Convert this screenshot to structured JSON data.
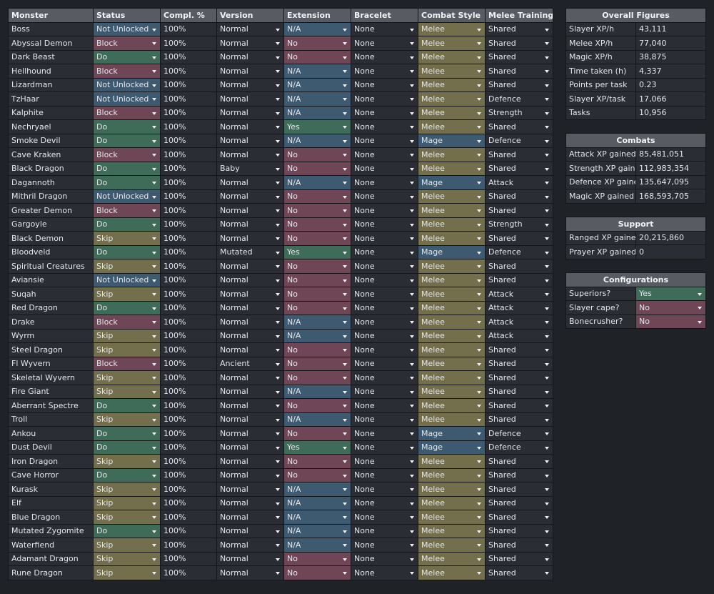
{
  "main_table": {
    "headers": [
      "Monster",
      "Status",
      "Compl. %",
      "Version",
      "Extension",
      "Bracelet",
      "Combat Style",
      "Melee Training"
    ],
    "rows": [
      [
        "Boss",
        "Not Unlocked",
        "100%",
        "Normal",
        "N/A",
        "None",
        "Melee",
        "Shared"
      ],
      [
        "Abyssal Demon",
        "Block",
        "100%",
        "Normal",
        "No",
        "None",
        "Melee",
        "Shared"
      ],
      [
        "Dark Beast",
        "Do",
        "100%",
        "Normal",
        "No",
        "None",
        "Melee",
        "Shared"
      ],
      [
        "Hellhound",
        "Block",
        "100%",
        "Normal",
        "N/A",
        "None",
        "Melee",
        "Shared"
      ],
      [
        "Lizardman",
        "Not Unlocked",
        "100%",
        "Normal",
        "N/A",
        "None",
        "Melee",
        "Shared"
      ],
      [
        "TzHaar",
        "Not Unlocked",
        "100%",
        "Normal",
        "N/A",
        "None",
        "Melee",
        "Defence"
      ],
      [
        "Kalphite",
        "Block",
        "100%",
        "Normal",
        "N/A",
        "None",
        "Melee",
        "Strength"
      ],
      [
        "Nechryael",
        "Do",
        "100%",
        "Normal",
        "Yes",
        "None",
        "Melee",
        "Shared"
      ],
      [
        "Smoke Devil",
        "Do",
        "100%",
        "Normal",
        "N/A",
        "None",
        "Mage",
        "Defence"
      ],
      [
        "Cave Kraken",
        "Block",
        "100%",
        "Normal",
        "No",
        "None",
        "Melee",
        "Shared"
      ],
      [
        "Black Dragon",
        "Do",
        "100%",
        "Baby",
        "No",
        "None",
        "Melee",
        "Shared"
      ],
      [
        "Dagannoth",
        "Do",
        "100%",
        "Normal",
        "N/A",
        "None",
        "Mage",
        "Attack"
      ],
      [
        "Mithril Dragon",
        "Not Unlocked",
        "100%",
        "Normal",
        "No",
        "None",
        "Melee",
        "Shared"
      ],
      [
        "Greater Demon",
        "Block",
        "100%",
        "Normal",
        "No",
        "None",
        "Melee",
        "Shared"
      ],
      [
        "Gargoyle",
        "Do",
        "100%",
        "Normal",
        "No",
        "None",
        "Melee",
        "Strength"
      ],
      [
        "Black Demon",
        "Skip",
        "100%",
        "Normal",
        "No",
        "None",
        "Melee",
        "Shared"
      ],
      [
        "Bloodveld",
        "Do",
        "100%",
        "Mutated",
        "Yes",
        "None",
        "Mage",
        "Defence"
      ],
      [
        "Spiritual Creatures",
        "Skip",
        "100%",
        "Normal",
        "No",
        "None",
        "Melee",
        "Shared"
      ],
      [
        "Aviansie",
        "Not Unlocked",
        "100%",
        "Normal",
        "No",
        "None",
        "Melee",
        "Shared"
      ],
      [
        "Suqah",
        "Skip",
        "100%",
        "Normal",
        "No",
        "None",
        "Melee",
        "Attack"
      ],
      [
        "Red Dragon",
        "Do",
        "100%",
        "Normal",
        "No",
        "None",
        "Melee",
        "Attack"
      ],
      [
        "Drake",
        "Block",
        "100%",
        "Normal",
        "N/A",
        "None",
        "Melee",
        "Attack"
      ],
      [
        "Wyrm",
        "Skip",
        "100%",
        "Normal",
        "N/A",
        "None",
        "Melee",
        "Attack"
      ],
      [
        "Steel Dragon",
        "Skip",
        "100%",
        "Normal",
        "No",
        "None",
        "Melee",
        "Shared"
      ],
      [
        "Fl Wyvern",
        "Block",
        "100%",
        "Ancient",
        "No",
        "None",
        "Melee",
        "Shared"
      ],
      [
        "Skeletal Wyvern",
        "Skip",
        "100%",
        "Normal",
        "No",
        "None",
        "Melee",
        "Shared"
      ],
      [
        "Fire Giant",
        "Skip",
        "100%",
        "Normal",
        "N/A",
        "None",
        "Melee",
        "Shared"
      ],
      [
        "Aberrant Spectre",
        "Do",
        "100%",
        "Normal",
        "No",
        "None",
        "Melee",
        "Shared"
      ],
      [
        "Troll",
        "Skip",
        "100%",
        "Normal",
        "N/A",
        "None",
        "Melee",
        "Shared"
      ],
      [
        "Ankou",
        "Do",
        "100%",
        "Normal",
        "No",
        "None",
        "Mage",
        "Defence"
      ],
      [
        "Dust Devil",
        "Do",
        "100%",
        "Normal",
        "Yes",
        "None",
        "Mage",
        "Defence"
      ],
      [
        "Iron Dragon",
        "Skip",
        "100%",
        "Normal",
        "No",
        "None",
        "Melee",
        "Shared"
      ],
      [
        "Cave Horror",
        "Do",
        "100%",
        "Normal",
        "No",
        "None",
        "Melee",
        "Shared"
      ],
      [
        "Kurask",
        "Skip",
        "100%",
        "Normal",
        "N/A",
        "None",
        "Melee",
        "Shared"
      ],
      [
        "Elf",
        "Skip",
        "100%",
        "Normal",
        "N/A",
        "None",
        "Melee",
        "Shared"
      ],
      [
        "Blue Dragon",
        "Skip",
        "100%",
        "Normal",
        "N/A",
        "None",
        "Melee",
        "Shared"
      ],
      [
        "Mutated Zygomite",
        "Do",
        "100%",
        "Normal",
        "N/A",
        "None",
        "Melee",
        "Shared"
      ],
      [
        "Waterfiend",
        "Skip",
        "100%",
        "Normal",
        "N/A",
        "None",
        "Melee",
        "Shared"
      ],
      [
        "Adamant Dragon",
        "Skip",
        "100%",
        "Normal",
        "No",
        "None",
        "Melee",
        "Shared"
      ],
      [
        "Rune Dragon",
        "Skip",
        "100%",
        "Normal",
        "No",
        "None",
        "Melee",
        "Shared"
      ]
    ]
  },
  "overall": {
    "title": "Overall Figures",
    "rows": [
      [
        "Slayer XP/h",
        "43,111"
      ],
      [
        "Melee XP/h",
        "77,040"
      ],
      [
        "Magic XP/h",
        "38,875"
      ],
      [
        "Time taken (h)",
        "4,337"
      ],
      [
        "Points per task",
        "0.23"
      ],
      [
        "Slayer XP/task",
        "17,066"
      ],
      [
        "Tasks",
        "10,956"
      ]
    ]
  },
  "combats": {
    "title": "Combats",
    "rows": [
      [
        "Attack XP gained",
        "85,481,051"
      ],
      [
        "Strength XP gained",
        "112,983,354"
      ],
      [
        "Defence XP gained",
        "135,647,095"
      ],
      [
        "Magic XP gained",
        "168,593,705"
      ]
    ]
  },
  "support": {
    "title": "Support",
    "rows": [
      [
        "Ranged XP gained",
        "20,215,860"
      ],
      [
        "Prayer XP gained",
        "0"
      ]
    ]
  },
  "configurations": {
    "title": "Configurations",
    "rows": [
      [
        "Superiors?",
        "Yes"
      ],
      [
        "Slayer cape?",
        "No"
      ],
      [
        "Bonecrusher?",
        "No"
      ]
    ]
  },
  "colors": {
    "background": "#1f2227",
    "header": "#585b61",
    "cell": "#2a2d33",
    "not_unlocked": "#3d5a70",
    "block": "#6e4656",
    "do": "#3f6b59",
    "skip": "#736f4c"
  },
  "icons": {
    "dropdown": "caret-down-icon"
  }
}
